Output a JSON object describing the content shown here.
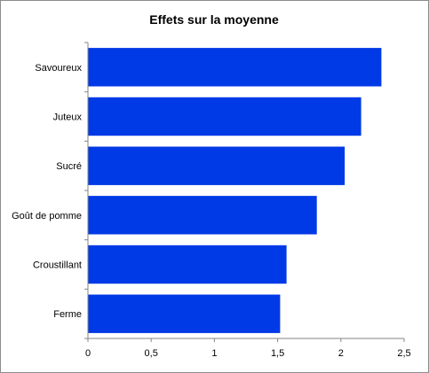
{
  "chart_data": {
    "type": "bar",
    "orientation": "horizontal",
    "title": "Effets sur la moyenne",
    "xlabel": "",
    "ylabel": "",
    "categories": [
      "Savoureux",
      "Juteux",
      "Sucré",
      "Goût de pomme",
      "Croustillant",
      "Ferme"
    ],
    "values": [
      2.32,
      2.16,
      2.03,
      1.81,
      1.57,
      1.52
    ],
    "xlim": [
      0,
      2.5
    ],
    "xticks": [
      "0",
      "0,5",
      "1",
      "1,5",
      "2",
      "2,5"
    ],
    "xtick_values": [
      0,
      0.5,
      1,
      1.5,
      2,
      2.5
    ],
    "grid": false,
    "legend": "none",
    "bar_color": "#0039E6"
  }
}
